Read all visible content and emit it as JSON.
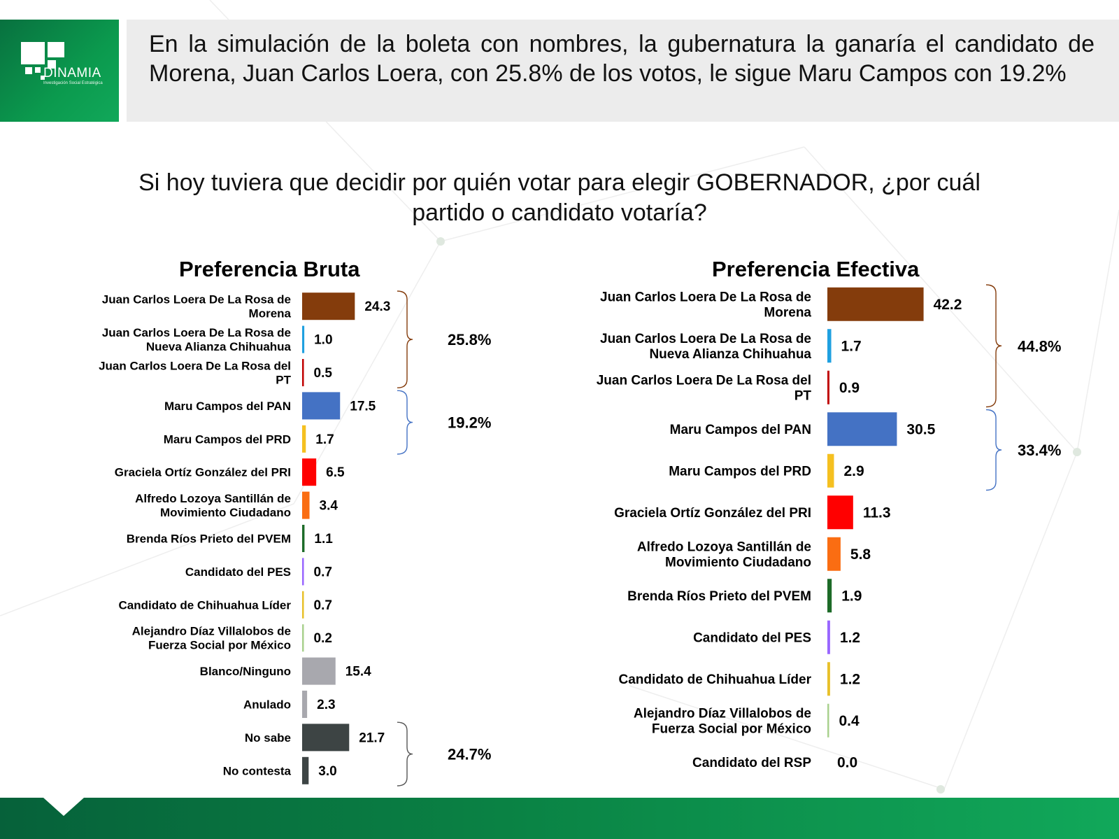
{
  "header": {
    "logo_text": "DINAMIA",
    "logo_subtext": "Investigación Social Estratégica",
    "headline": "En la simulación de la boleta con nombres, la gubernatura la ganaría el candidato de Morena, Juan Carlos Loera, con 25.8% de los votos, le sigue Maru Campos con 19.2%"
  },
  "question": "Si hoy tuviera que decidir por quién votar para elegir GOBERNADOR, ¿por cuál partido o candidato votaría?",
  "chart_data": [
    {
      "type": "bar",
      "orientation": "horizontal",
      "title": "Preferencia Bruta",
      "categories": [
        "Juan Carlos Loera De La Rosa de Morena",
        "Juan Carlos Loera De La Rosa de Nueva Alianza Chihuahua",
        "Juan Carlos Loera De La Rosa del PT",
        "Maru Campos del PAN",
        "Maru Campos del PRD",
        "Graciela Ortíz González del PRI",
        "Alfredo Lozoya Santillán de Movimiento Ciudadano",
        "Brenda Ríos Prieto del PVEM",
        "Candidato del PES",
        "Candidato de Chihuahua Líder",
        "Alejandro Díaz Villalobos de Fuerza Social por México",
        "Blanco/Ninguno",
        "Anulado",
        "No sabe",
        "No contesta"
      ],
      "values": [
        24.3,
        1.0,
        0.5,
        17.5,
        1.7,
        6.5,
        3.4,
        1.1,
        0.7,
        0.7,
        0.2,
        15.4,
        2.3,
        21.7,
        3.0
      ],
      "value_labels": [
        "24.3",
        "1.0",
        "0.5",
        "17.5",
        "1.7",
        "6.5",
        "3.4",
        "1.1",
        "0.7",
        "0.7",
        "0.2",
        "15.4",
        "2.3",
        "21.7",
        "3.0"
      ],
      "colors": [
        "#843c0c",
        "#1fa0e0",
        "#c00000",
        "#4472c4",
        "#f5c020",
        "#ff0000",
        "#fa6d12",
        "#1d6b28",
        "#9966ff",
        "#e8c02a",
        "#a9d18e",
        "#a8a8ae",
        "#a8a8ae",
        "#3d4444",
        "#3d4444"
      ],
      "groups": [
        {
          "start": 0,
          "end": 2,
          "label": "25.8%",
          "color": "#843c0c"
        },
        {
          "start": 3,
          "end": 4,
          "label": "19.2%",
          "color": "#4472c4"
        },
        {
          "start": 13,
          "end": 14,
          "label": "24.7%",
          "color": "#555555"
        }
      ],
      "xlim": [
        0,
        50
      ]
    },
    {
      "type": "bar",
      "orientation": "horizontal",
      "title": "Preferencia Efectiva",
      "categories": [
        "Juan Carlos Loera De La Rosa de Morena",
        "Juan Carlos Loera De La Rosa de Nueva Alianza Chihuahua",
        "Juan Carlos Loera De La Rosa del PT",
        "Maru Campos del PAN",
        "Maru Campos del PRD",
        "Graciela Ortíz González del PRI",
        "Alfredo Lozoya Santillán de Movimiento Ciudadano",
        "Brenda Ríos Prieto del PVEM",
        "Candidato del PES",
        "Candidato de Chihuahua Líder",
        "Alejandro Díaz Villalobos de Fuerza Social por México",
        "Candidato del RSP"
      ],
      "values": [
        42.2,
        1.7,
        0.9,
        30.5,
        2.9,
        11.3,
        5.8,
        1.9,
        1.2,
        1.2,
        0.4,
        0.0
      ],
      "value_labels": [
        "42.2",
        "1.7",
        "0.9",
        "30.5",
        "2.9",
        "11.3",
        "5.8",
        "1.9",
        "1.2",
        "1.2",
        "0.4",
        "0.0"
      ],
      "colors": [
        "#843c0c",
        "#1fa0e0",
        "#c00000",
        "#4472c4",
        "#f5c020",
        "#ff0000",
        "#fa6d12",
        "#1d6b28",
        "#9966ff",
        "#e8c02a",
        "#a9d18e",
        "#a8a8ae"
      ],
      "groups": [
        {
          "start": 0,
          "end": 2,
          "label": "44.8%",
          "color": "#843c0c"
        },
        {
          "start": 3,
          "end": 4,
          "label": "33.4%",
          "color": "#4472c4"
        }
      ],
      "xlim": [
        0,
        70
      ]
    }
  ]
}
